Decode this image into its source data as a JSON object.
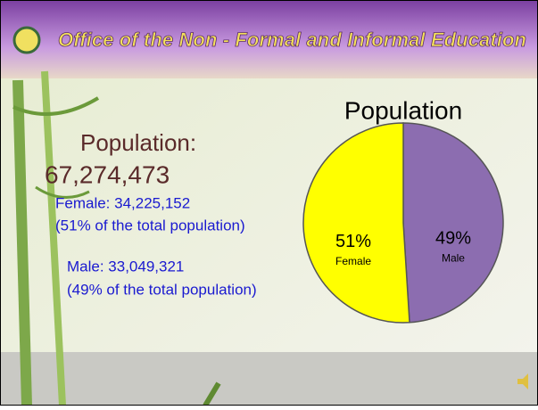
{
  "header": {
    "title": "Office of the Non - Formal and Informal Education"
  },
  "text": {
    "heading": "Population:",
    "total": "67,274,473",
    "female_line": "Female:  34,225,152",
    "female_share": "(51% of the total population)",
    "male_line": "Male: 33,049,321",
    "male_share": "(49% of the total population)"
  },
  "chart_data": {
    "type": "pie",
    "title": "Population",
    "categories": [
      "Female",
      "Male"
    ],
    "values": [
      51,
      49
    ],
    "value_labels": [
      "51%",
      "49%"
    ],
    "colors": [
      "#ffff00",
      "#8c6db0"
    ]
  }
}
